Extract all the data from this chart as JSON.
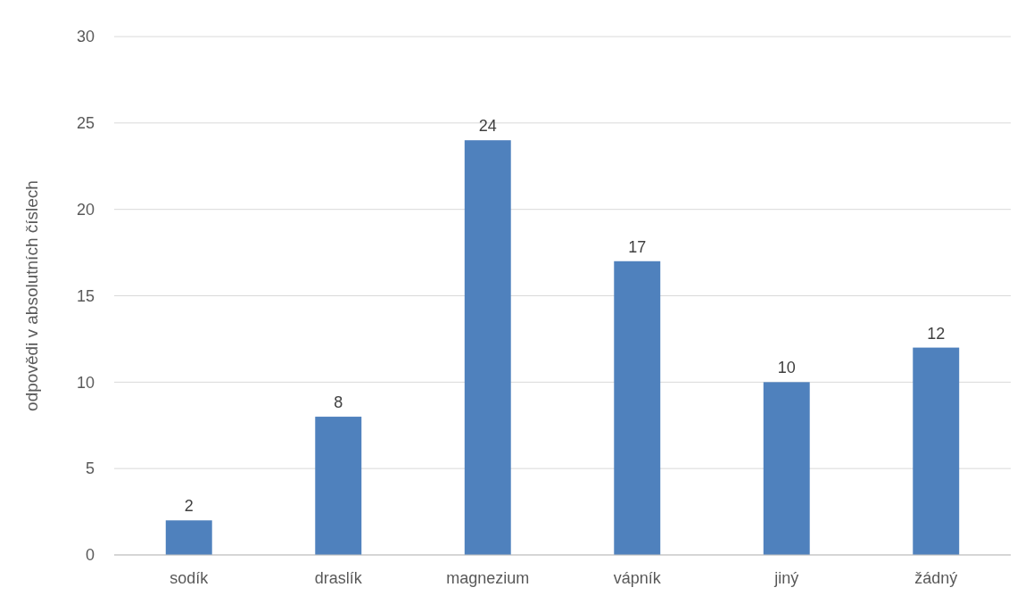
{
  "chart_data": {
    "type": "bar",
    "ylabel": "odpovědi v absolutních číslech",
    "categories": [
      "sodík",
      "draslík",
      "magnezium",
      "vápník",
      "jiný",
      "žádný"
    ],
    "values": [
      2,
      8,
      24,
      17,
      10,
      12
    ],
    "color": "#4f81bd",
    "ylim": [
      0,
      30
    ],
    "yticks": [
      0,
      5,
      10,
      15,
      20,
      25,
      30
    ],
    "grid": "y",
    "data_labels": true
  }
}
